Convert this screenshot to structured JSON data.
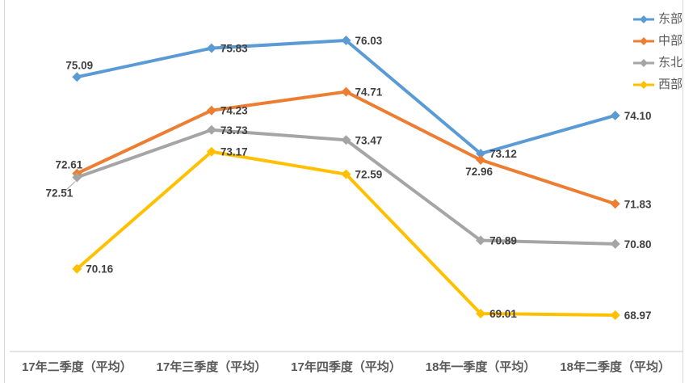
{
  "chart_data": {
    "type": "line",
    "title": "",
    "categories": [
      "17年二季度（平均）",
      "17年三季度（平均）",
      "17年四季度（平均）",
      "18年一季度（平均）",
      "18年二季度（平均）"
    ],
    "series": [
      {
        "key": "east",
        "name": "东部",
        "color": "#5B9BD5",
        "values": [
          75.09,
          75.83,
          76.03,
          73.12,
          74.1
        ],
        "labels": [
          "75.09",
          "75.83",
          "76.03",
          "73.12",
          "74.10"
        ],
        "label_placement": [
          "above",
          "right",
          "right",
          "right",
          "right"
        ]
      },
      {
        "key": "central",
        "name": "中部",
        "color": "#ED7D31",
        "values": [
          72.61,
          74.23,
          74.71,
          72.96,
          71.83
        ],
        "labels": [
          "72.61",
          "74.23",
          "74.71",
          "72.96",
          "71.83"
        ],
        "label_placement": [
          "above-left",
          "right",
          "right",
          "below",
          "right"
        ]
      },
      {
        "key": "northeast",
        "name": "东北",
        "color": "#A5A5A5",
        "values": [
          72.51,
          73.73,
          73.47,
          70.89,
          70.8
        ],
        "labels": [
          "72.51",
          "73.73",
          "73.47",
          "70.89",
          "70.80"
        ],
        "label_placement": [
          "below-left-leader",
          "right",
          "right",
          "right",
          "right"
        ]
      },
      {
        "key": "west",
        "name": "西部",
        "color": "#FFC000",
        "values": [
          70.16,
          73.17,
          72.59,
          69.01,
          68.97
        ],
        "labels": [
          "70.16",
          "73.17",
          "72.59",
          "69.01",
          "68.97"
        ],
        "label_placement": [
          "right",
          "right",
          "right",
          "right",
          "right"
        ]
      }
    ],
    "legend_position": "top-right",
    "grid": false,
    "marker": "diamond",
    "data_label_color": "#404040",
    "axis": {
      "baseline_color": "#C9C9C9",
      "label_color": "#595959"
    },
    "y_implied_range": [
      68.5,
      76.5
    ]
  }
}
